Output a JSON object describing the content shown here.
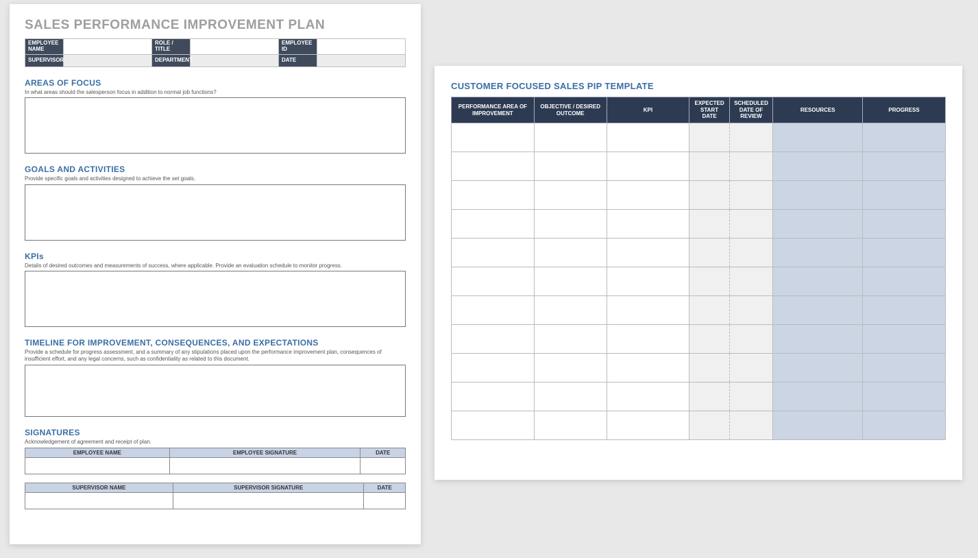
{
  "left": {
    "title": "SALES PERFORMANCE IMPROVEMENT PLAN",
    "info_rows": [
      [
        {
          "label": "EMPLOYEE NAME",
          "value": ""
        },
        {
          "label": "ROLE / TITLE",
          "value": ""
        },
        {
          "label": "EMPLOYEE ID",
          "value": ""
        }
      ],
      [
        {
          "label": "SUPERVISOR",
          "value": ""
        },
        {
          "label": "DEPARTMENT",
          "value": ""
        },
        {
          "label": "DATE",
          "value": ""
        }
      ]
    ],
    "sections": [
      {
        "head": "AREAS OF FOCUS",
        "sub": "In what areas should the salesperson focus in addition to normal job functions?"
      },
      {
        "head": "GOALS AND ACTIVITIES",
        "sub": "Provide specific goals and activities designed to achieve the set goals."
      },
      {
        "head": "KPIs",
        "sub": "Details of desired outcomes and measurements of success, where applicable. Provide an evaluation schedule to monitor progress."
      },
      {
        "head": "TIMELINE FOR IMPROVEMENT, CONSEQUENCES, AND EXPECTATIONS",
        "sub": "Provide a schedule for progress assessment, and a summary of any stipulations placed upon the performance improvement plan, consequences of insufficient effort, and any legal concerns, such as confidentiality as related to this document."
      },
      {
        "head": "SIGNATURES",
        "sub": "Acknowledgement of agreement and receipt of plan."
      }
    ],
    "sig_headers_emp": [
      "EMPLOYEE NAME",
      "EMPLOYEE SIGNATURE",
      "DATE"
    ],
    "sig_headers_sup": [
      "SUPERVISOR NAME",
      "SUPERVISOR SIGNATURE",
      "DATE"
    ]
  },
  "right": {
    "title": "CUSTOMER FOCUSED SALES PIP TEMPLATE",
    "columns": [
      "PERFORMANCE AREA OF IMPROVEMENT",
      "OBJECTIVE / DESIRED OUTCOME",
      "KPI",
      "EXPECTED START DATE",
      "SCHEDULED DATE OF REVIEW",
      "RESOURCES",
      "PROGRESS"
    ],
    "row_count": 11,
    "colors": {
      "header_bg": "#2d3b52",
      "section_head": "#3a6ea5",
      "info_label_bg": "#3f4a5c",
      "sig_header_bg": "#c8d3e6",
      "gray_cell": "#f0f0f0",
      "blue_cell": "#cbd5e3"
    }
  }
}
